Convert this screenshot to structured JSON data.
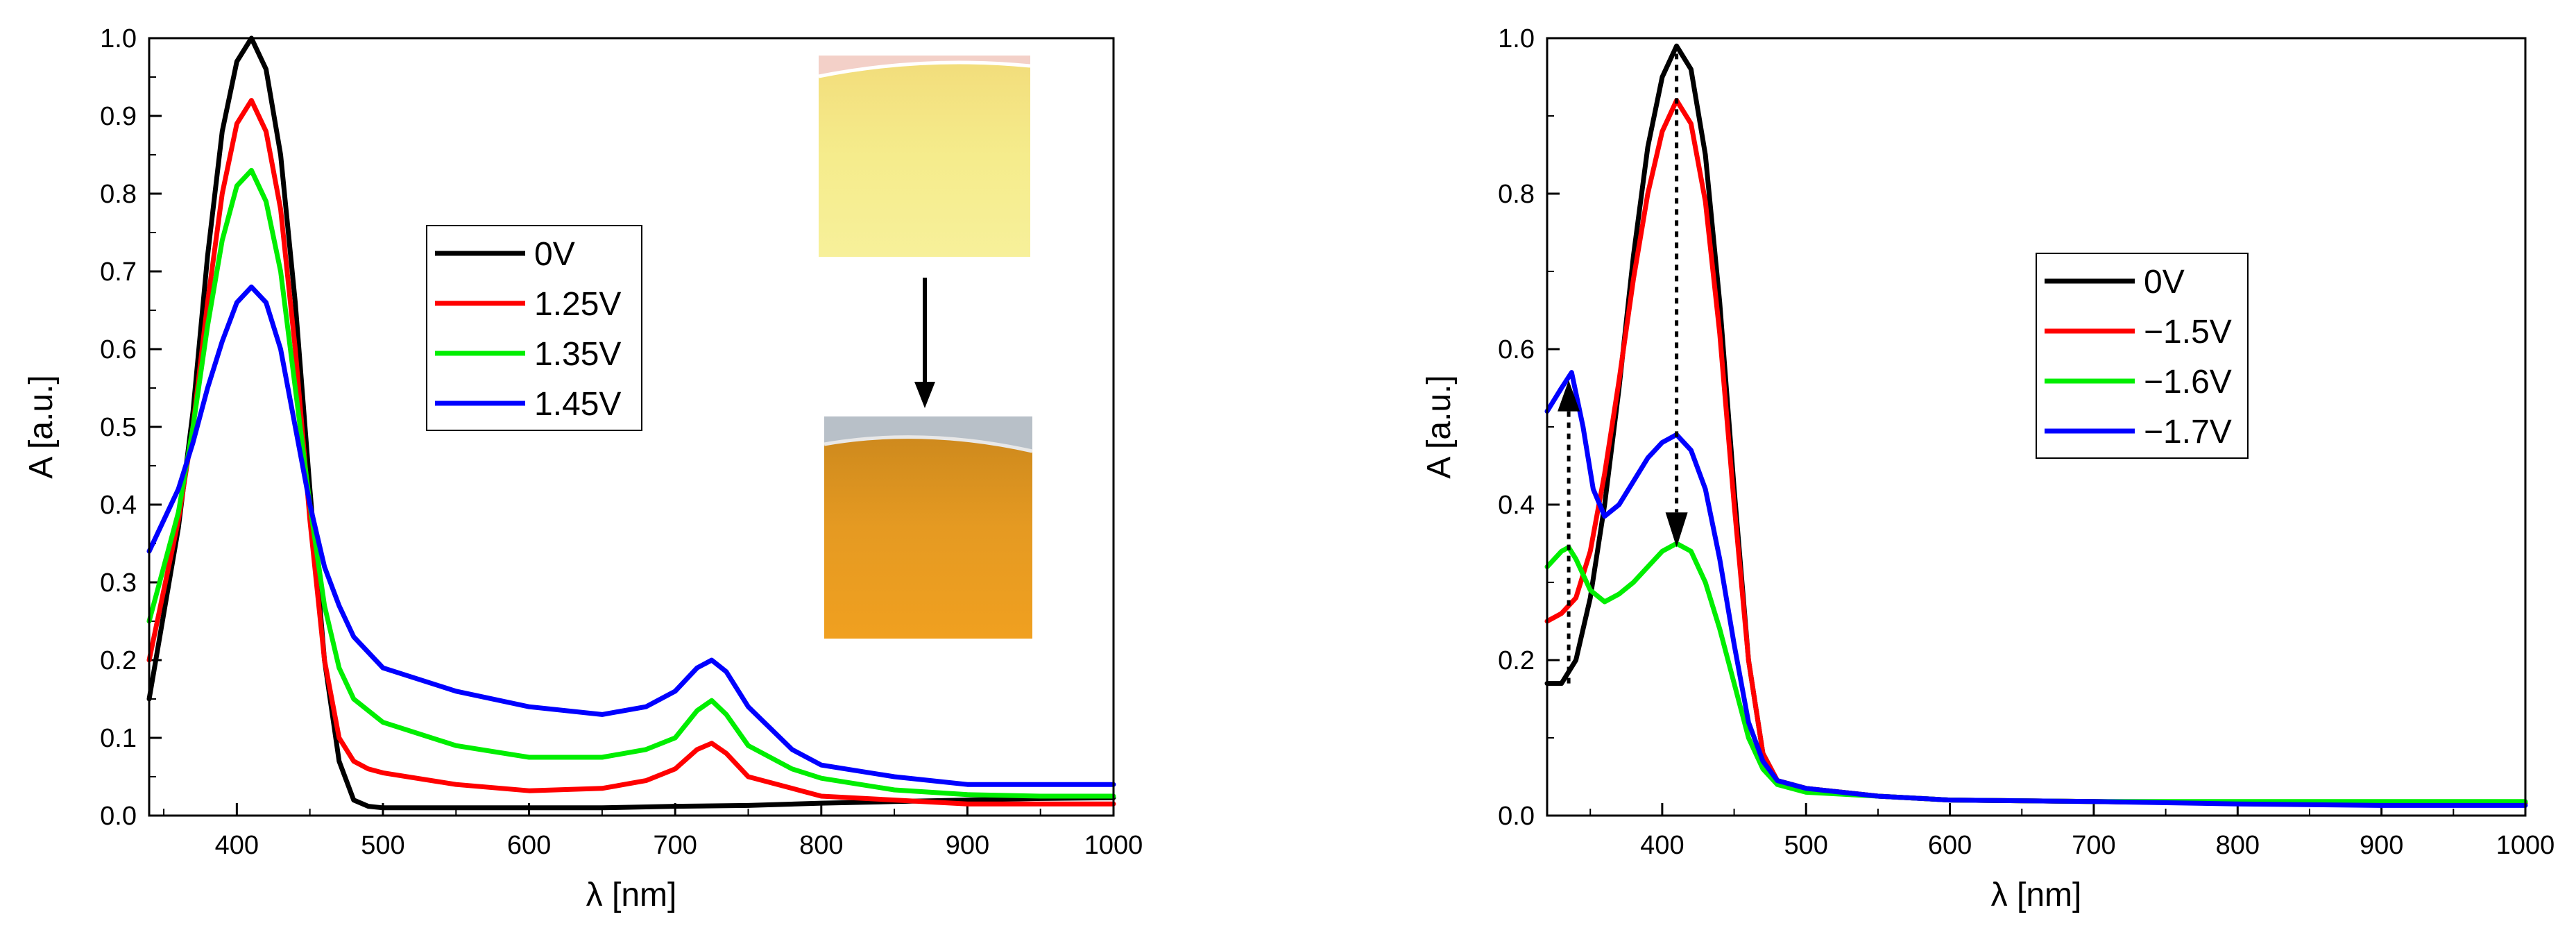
{
  "chart_data": [
    {
      "type": "line",
      "title": "",
      "xlabel": "λ [nm]",
      "ylabel": "A [a.u.]",
      "xlim": [
        340,
        1000
      ],
      "ylim": [
        0,
        1.0
      ],
      "xticks": [
        400,
        500,
        600,
        700,
        800,
        900,
        1000
      ],
      "xtick_labels": [
        "400",
        "500",
        "600",
        "700",
        "800",
        "900",
        "1000"
      ],
      "yticks": [
        0.0,
        0.1,
        0.2,
        0.3,
        0.4,
        0.5,
        0.6,
        0.7,
        0.8,
        0.9,
        1.0
      ],
      "ytick_labels": [
        "0.0",
        "0.1",
        "0.2",
        "0.3",
        "0.4",
        "0.5",
        "0.6",
        "0.7",
        "0.8",
        "0.9",
        "1.0"
      ],
      "legend_position": "center",
      "annotations": [
        "inset photo: yellow film (top)",
        "inset photo: orange film (bottom)",
        "downward arrow between photos"
      ],
      "series": [
        {
          "name": "0V",
          "color": "#000000",
          "x": [
            340,
            360,
            370,
            380,
            390,
            400,
            410,
            420,
            430,
            440,
            450,
            460,
            470,
            480,
            490,
            500,
            550,
            600,
            650,
            700,
            750,
            800,
            850,
            900,
            950,
            1000
          ],
          "y": [
            0.15,
            0.37,
            0.52,
            0.72,
            0.88,
            0.97,
            1.0,
            0.96,
            0.85,
            0.66,
            0.42,
            0.2,
            0.07,
            0.02,
            0.012,
            0.01,
            0.01,
            0.01,
            0.01,
            0.012,
            0.013,
            0.016,
            0.018,
            0.02,
            0.022,
            0.023
          ]
        },
        {
          "name": "1.25V",
          "color": "#ff0000",
          "x": [
            340,
            360,
            370,
            380,
            390,
            400,
            410,
            420,
            430,
            440,
            450,
            460,
            470,
            480,
            490,
            500,
            550,
            600,
            650,
            680,
            700,
            715,
            725,
            735,
            750,
            780,
            800,
            850,
            900,
            950,
            1000
          ],
          "y": [
            0.2,
            0.38,
            0.5,
            0.66,
            0.8,
            0.89,
            0.92,
            0.88,
            0.78,
            0.6,
            0.38,
            0.2,
            0.1,
            0.07,
            0.06,
            0.055,
            0.04,
            0.032,
            0.035,
            0.045,
            0.06,
            0.085,
            0.093,
            0.08,
            0.05,
            0.035,
            0.025,
            0.02,
            0.015,
            0.015,
            0.015
          ]
        },
        {
          "name": "1.35V",
          "color": "#00ee00",
          "x": [
            340,
            360,
            370,
            380,
            390,
            400,
            410,
            420,
            430,
            440,
            450,
            460,
            470,
            480,
            500,
            550,
            600,
            650,
            680,
            700,
            715,
            725,
            735,
            750,
            780,
            800,
            850,
            900,
            950,
            1000
          ],
          "y": [
            0.25,
            0.39,
            0.5,
            0.63,
            0.74,
            0.81,
            0.83,
            0.79,
            0.7,
            0.55,
            0.4,
            0.27,
            0.19,
            0.15,
            0.12,
            0.09,
            0.075,
            0.075,
            0.085,
            0.1,
            0.135,
            0.148,
            0.13,
            0.09,
            0.06,
            0.048,
            0.033,
            0.027,
            0.025,
            0.025
          ]
        },
        {
          "name": "1.45V",
          "color": "#0000ff",
          "x": [
            340,
            360,
            370,
            380,
            390,
            400,
            410,
            420,
            430,
            440,
            450,
            460,
            470,
            480,
            500,
            550,
            600,
            650,
            680,
            700,
            715,
            725,
            735,
            750,
            780,
            800,
            850,
            900,
            950,
            1000
          ],
          "y": [
            0.34,
            0.42,
            0.48,
            0.55,
            0.61,
            0.66,
            0.68,
            0.66,
            0.6,
            0.5,
            0.4,
            0.32,
            0.27,
            0.23,
            0.19,
            0.16,
            0.14,
            0.13,
            0.14,
            0.16,
            0.19,
            0.2,
            0.185,
            0.14,
            0.085,
            0.065,
            0.05,
            0.04,
            0.04,
            0.04
          ]
        }
      ]
    },
    {
      "type": "line",
      "title": "",
      "xlabel": "λ [nm]",
      "ylabel": "A [a.u.]",
      "xlim": [
        320,
        1000
      ],
      "ylim": [
        0,
        1.0
      ],
      "xticks": [
        400,
        500,
        600,
        700,
        800,
        900,
        1000
      ],
      "xtick_labels": [
        "400",
        "500",
        "600",
        "700",
        "800",
        "900",
        "1000"
      ],
      "yticks": [
        0.0,
        0.2,
        0.4,
        0.6,
        0.8,
        1.0
      ],
      "ytick_labels": [
        "0.0",
        "0.2",
        "0.4",
        "0.6",
        "0.8",
        "1.0"
      ],
      "legend_position": "center-right",
      "annotations": [
        "dotted arrow up at 335 nm (0.17 to 0.56)",
        "dotted arrow down at 410 nm (0.98 to 0.35)"
      ],
      "series": [
        {
          "name": "0V",
          "color": "#000000",
          "x": [
            320,
            330,
            340,
            350,
            360,
            370,
            380,
            390,
            400,
            410,
            420,
            430,
            440,
            450,
            460,
            470,
            480,
            500,
            550,
            600,
            700,
            800,
            900,
            1000
          ],
          "y": [
            0.17,
            0.17,
            0.2,
            0.28,
            0.4,
            0.55,
            0.72,
            0.86,
            0.95,
            0.99,
            0.96,
            0.85,
            0.66,
            0.42,
            0.2,
            0.08,
            0.045,
            0.035,
            0.025,
            0.02,
            0.018,
            0.016,
            0.016,
            0.016
          ]
        },
        {
          "name": "−1.5V",
          "color": "#ff0000",
          "x": [
            320,
            330,
            340,
            350,
            360,
            370,
            380,
            390,
            400,
            410,
            420,
            430,
            440,
            450,
            460,
            470,
            480,
            500,
            550,
            600,
            700,
            800,
            900,
            1000
          ],
          "y": [
            0.25,
            0.26,
            0.28,
            0.34,
            0.44,
            0.56,
            0.69,
            0.8,
            0.88,
            0.92,
            0.89,
            0.79,
            0.62,
            0.4,
            0.2,
            0.08,
            0.045,
            0.035,
            0.025,
            0.02,
            0.018,
            0.016,
            0.016,
            0.016
          ]
        },
        {
          "name": "−1.6V",
          "color": "#00ee00",
          "x": [
            320,
            330,
            335,
            340,
            350,
            360,
            370,
            380,
            390,
            400,
            410,
            420,
            430,
            440,
            450,
            460,
            470,
            480,
            500,
            550,
            600,
            700,
            800,
            900,
            1000
          ],
          "y": [
            0.32,
            0.34,
            0.345,
            0.33,
            0.29,
            0.275,
            0.285,
            0.3,
            0.32,
            0.34,
            0.35,
            0.34,
            0.3,
            0.24,
            0.17,
            0.1,
            0.06,
            0.04,
            0.03,
            0.025,
            0.02,
            0.018,
            0.018,
            0.018,
            0.018
          ]
        },
        {
          "name": "−1.7V",
          "color": "#0000ff",
          "x": [
            320,
            330,
            337,
            345,
            352,
            360,
            370,
            380,
            390,
            400,
            410,
            420,
            430,
            440,
            450,
            460,
            470,
            480,
            500,
            550,
            600,
            700,
            800,
            900,
            1000
          ],
          "y": [
            0.52,
            0.55,
            0.57,
            0.5,
            0.42,
            0.385,
            0.4,
            0.43,
            0.46,
            0.48,
            0.49,
            0.47,
            0.42,
            0.33,
            0.22,
            0.12,
            0.07,
            0.045,
            0.035,
            0.025,
            0.02,
            0.018,
            0.015,
            0.013,
            0.013
          ]
        }
      ]
    }
  ]
}
